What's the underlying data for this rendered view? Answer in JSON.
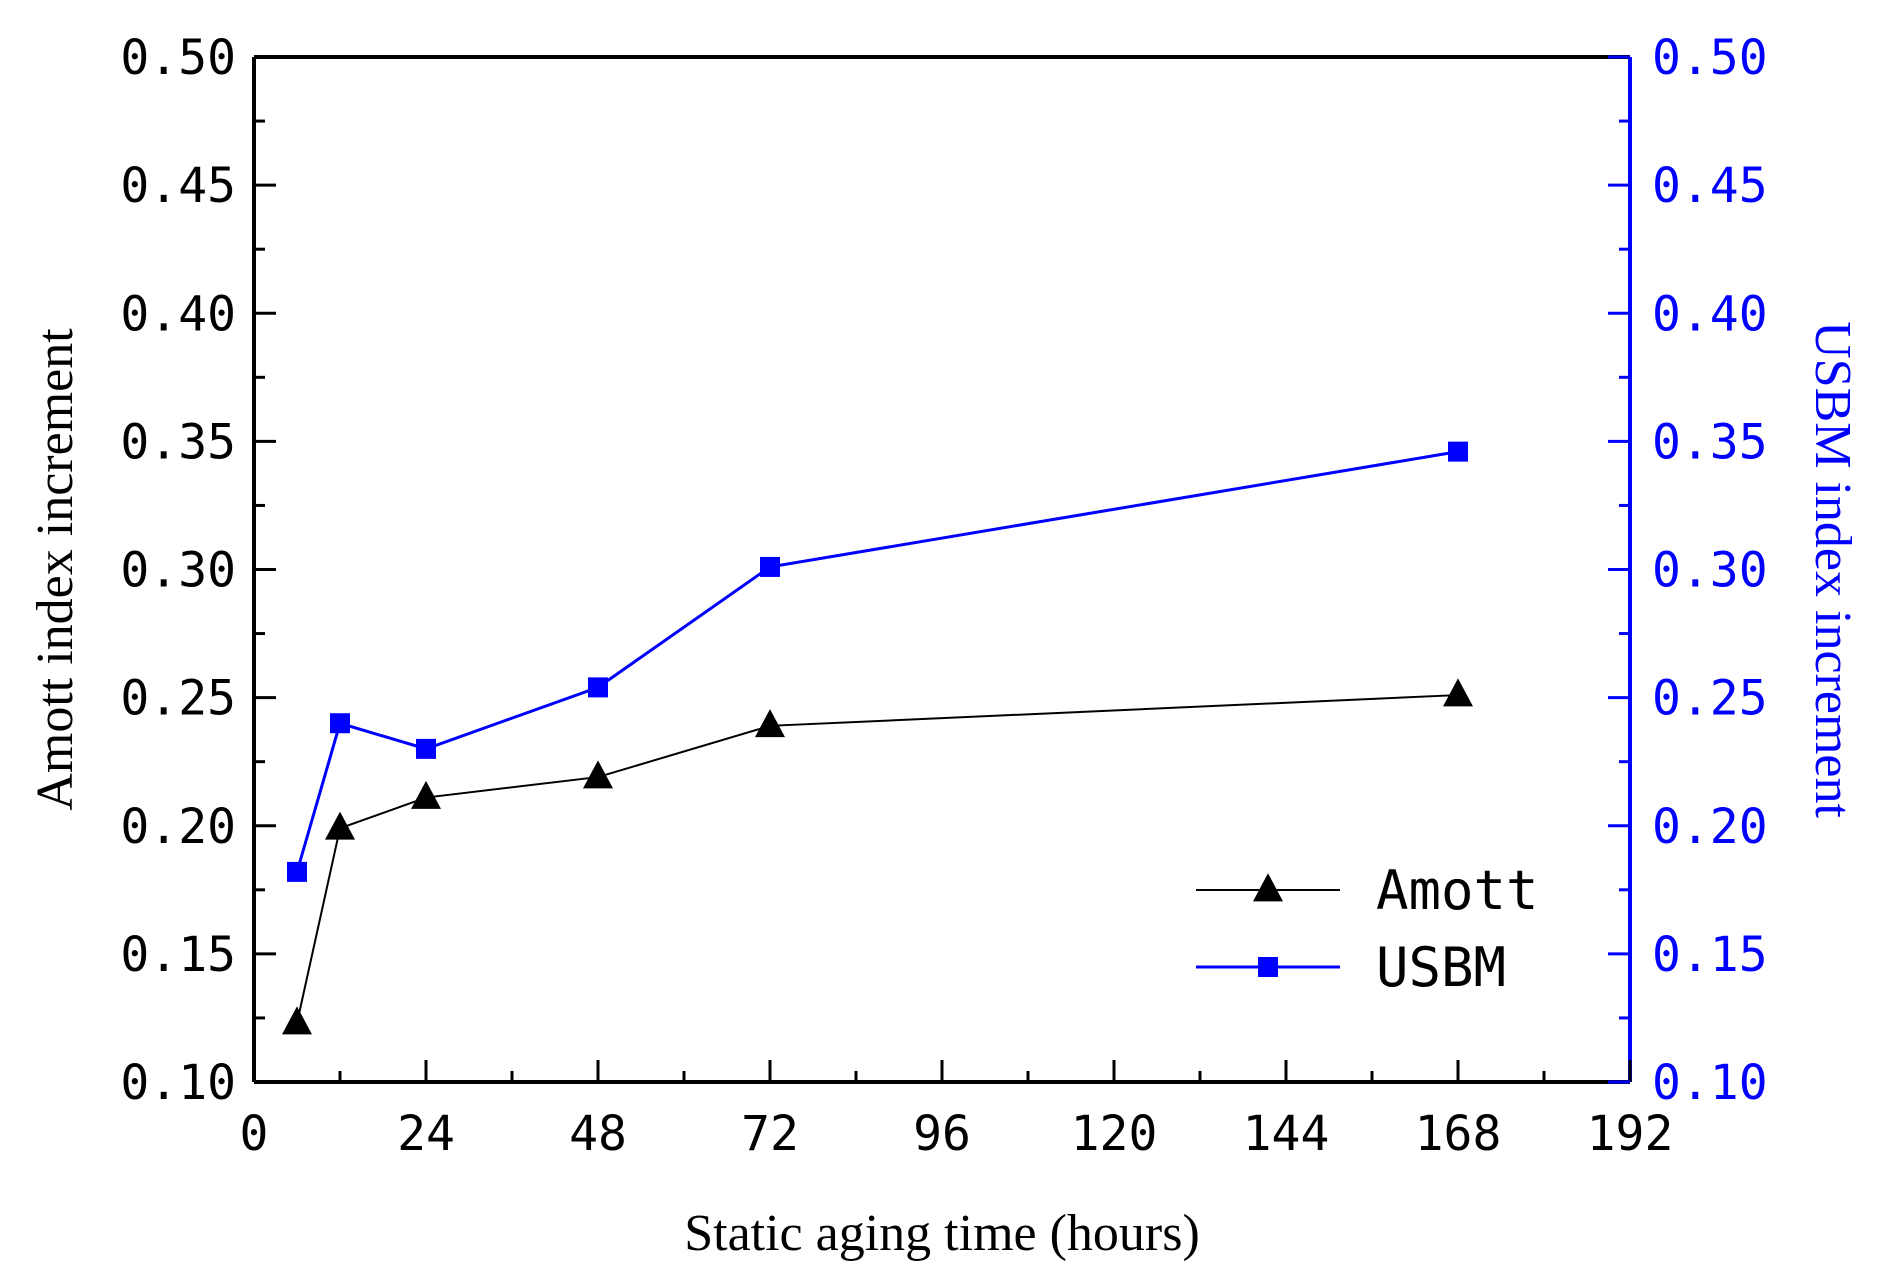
{
  "chart_data": {
    "type": "line",
    "title": "",
    "xlabel": "Static aging time (hours)",
    "ylabel_left": "Amott index increment",
    "ylabel_right": "USBM index increment",
    "xlim": [
      0,
      192
    ],
    "x_ticks": [
      0,
      24,
      48,
      72,
      96,
      120,
      144,
      168,
      192
    ],
    "x_tick_labels": [
      "0",
      "24",
      "48",
      "72",
      "96",
      "120",
      "144",
      "168",
      "192"
    ],
    "ylim_left": [
      0.1,
      0.5
    ],
    "ylim_right": [
      0.1,
      0.5
    ],
    "y_ticks": [
      0.1,
      0.15,
      0.2,
      0.25,
      0.3,
      0.35,
      0.4,
      0.45,
      0.5
    ],
    "y_tick_labels": [
      "0.10",
      "0.15",
      "0.20",
      "0.25",
      "0.30",
      "0.35",
      "0.40",
      "0.45",
      "0.50"
    ],
    "grid": false,
    "legend_position": "bottom-right",
    "series": [
      {
        "name": "Amott",
        "axis": "left",
        "color": "#000000",
        "marker": "triangle",
        "x": [
          6,
          12,
          24,
          48,
          72,
          168
        ],
        "values": [
          0.123,
          0.199,
          0.211,
          0.219,
          0.239,
          0.251
        ]
      },
      {
        "name": "USBM",
        "axis": "right",
        "color": "#0000ff",
        "marker": "square",
        "x": [
          6,
          12,
          24,
          48,
          72,
          168
        ],
        "values": [
          0.182,
          0.24,
          0.23,
          0.254,
          0.301,
          0.346
        ]
      }
    ]
  }
}
